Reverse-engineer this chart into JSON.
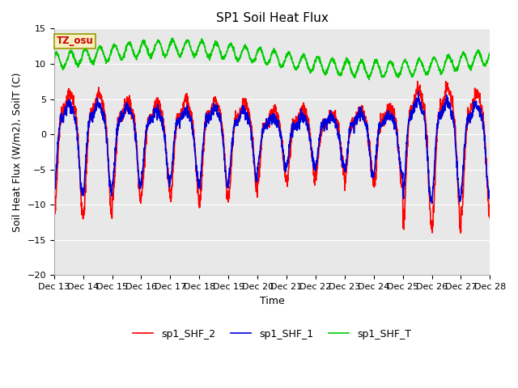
{
  "title": "SP1 Soil Heat Flux",
  "ylabel": "Soil Heat Flux (W/m2), SoilT (C)",
  "xlabel": "Time",
  "ylim": [
    -20,
    15
  ],
  "yticks": [
    -20,
    -15,
    -10,
    -5,
    0,
    5,
    10,
    15
  ],
  "xtick_labels": [
    "Dec 13",
    "Dec 14",
    "Dec 15",
    "Dec 16",
    "Dec 17",
    "Dec 18",
    "Dec 19",
    "Dec 20",
    "Dec 21",
    "Dec 22",
    "Dec 23",
    "Dec 24",
    "Dec 25",
    "Dec 26",
    "Dec 27",
    "Dec 28"
  ],
  "tz_label": "TZ_osu",
  "tz_color": "#cc0000",
  "tz_bg": "#f5f0c0",
  "tz_edge": "#999900",
  "line_colors": {
    "shf2": "#ff0000",
    "shf1": "#0000dd",
    "shft": "#00cc00"
  },
  "line_width": 1.2,
  "legend_labels": [
    "sp1_SHF_2",
    "sp1_SHF_1",
    "sp1_SHF_T"
  ],
  "title_fontsize": 11,
  "label_fontsize": 9,
  "tick_fontsize": 8
}
